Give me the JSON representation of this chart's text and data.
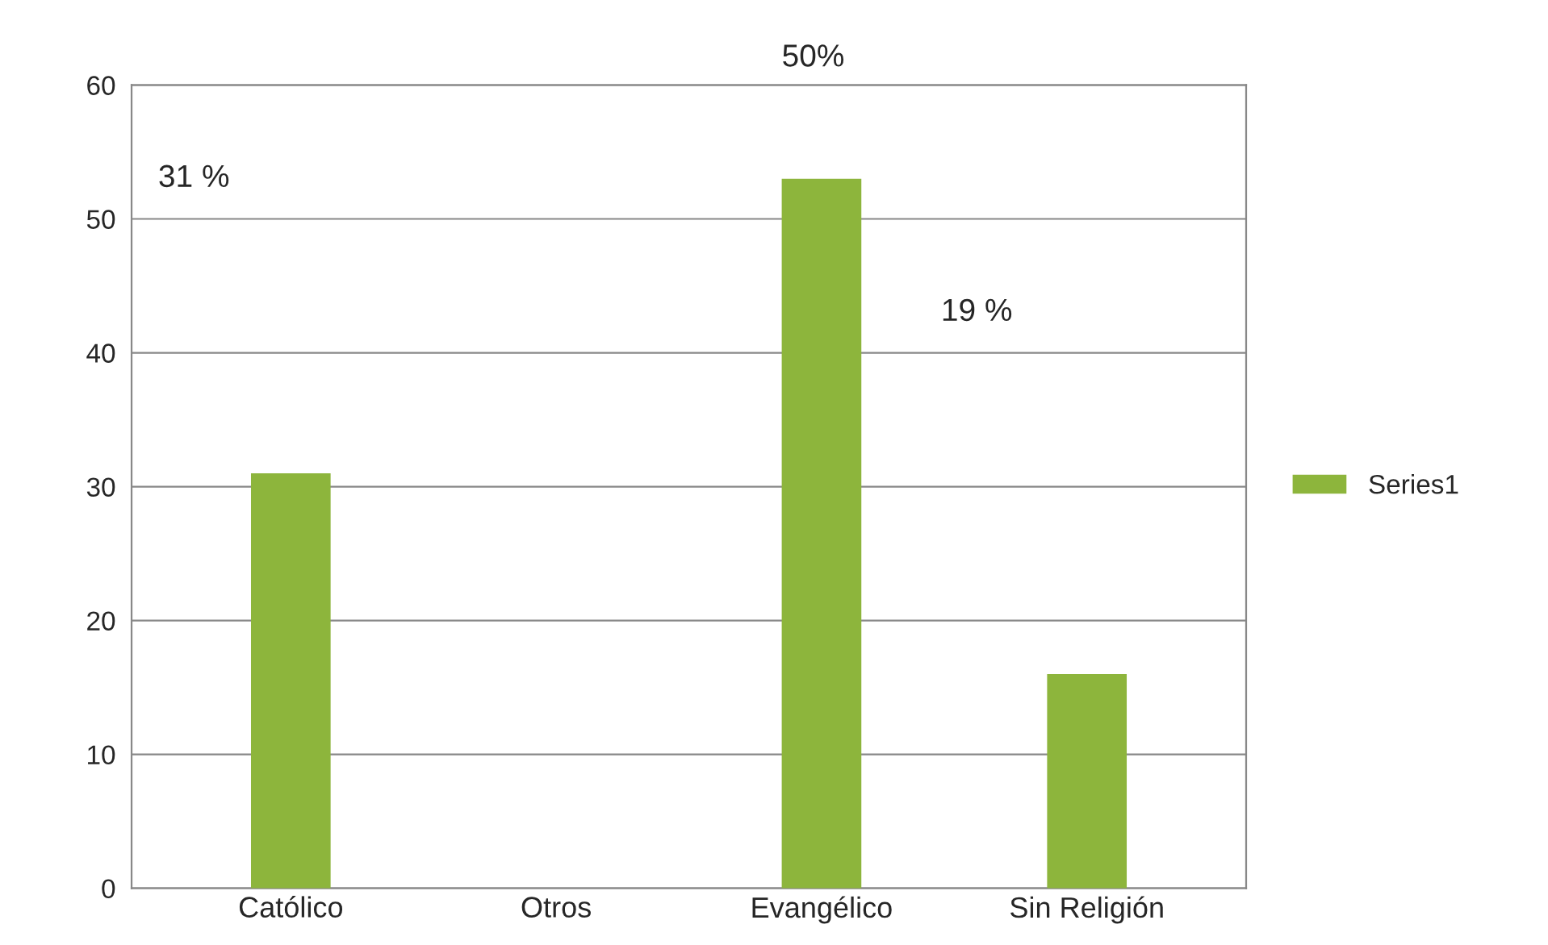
{
  "chart_data": {
    "type": "bar",
    "categories": [
      "Católico",
      "Otros",
      "Evangélico",
      "Sin Religión"
    ],
    "series": [
      {
        "name": "Series1",
        "color": "#8db53c",
        "values": [
          31,
          0,
          53,
          16
        ]
      }
    ],
    "ylim": [
      0,
      60
    ],
    "yticks": [
      0,
      10,
      20,
      30,
      40,
      50,
      60
    ],
    "grid": "y",
    "legend": "right",
    "annotations": [
      "31 %",
      "50%",
      "19 %"
    ]
  }
}
